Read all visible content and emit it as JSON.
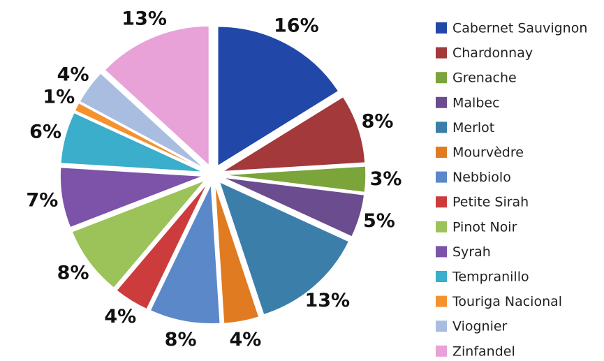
{
  "chart_data": {
    "type": "pie",
    "categories": [
      "Cabernet Sauvignon",
      "Chardonnay",
      "Grenache",
      "Malbec",
      "Merlot",
      "Mourvèdre",
      "Nebbiolo",
      "Petite Sirah",
      "Pinot Noir",
      "Syrah",
      "Tempranillo",
      "Touriga Nacional",
      "Viognier",
      "Zinfandel"
    ],
    "values": [
      16,
      8,
      3,
      5,
      13,
      4,
      8,
      4,
      8,
      7,
      6,
      1,
      4,
      13
    ],
    "value_labels": [
      "16%",
      "8%",
      "3%",
      "5%",
      "13%",
      "4%",
      "8%",
      "4%",
      "8%",
      "7%",
      "6%",
      "1%",
      "4%",
      "13%"
    ],
    "colors": [
      "#2148a8",
      "#a3393b",
      "#7ba43a",
      "#6b4c8f",
      "#3a7ea9",
      "#e07b22",
      "#5a88c9",
      "#cc3c3c",
      "#9cc25a",
      "#7c53a9",
      "#3aaecb",
      "#f5922e",
      "#a9bde0",
      "#e8a2d8"
    ],
    "legend": "right"
  }
}
